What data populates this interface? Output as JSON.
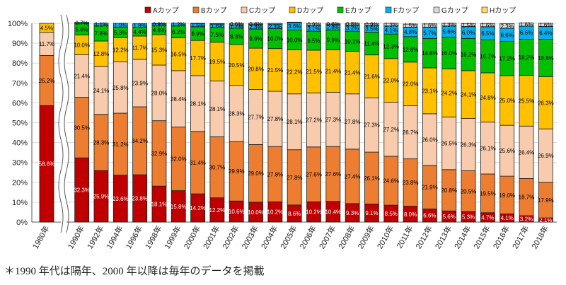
{
  "note": "＊1990 年代は隔年、2000 年以降は毎年のデータを掲載",
  "chart_data": {
    "type": "bar",
    "stacked": true,
    "percent_scale": true,
    "title": "",
    "xlabel": "",
    "ylabel": "",
    "ylim": [
      0,
      100
    ],
    "yticks": [
      "0%",
      "10%",
      "20%",
      "30%",
      "40%",
      "50%",
      "60%",
      "70%",
      "80%",
      "90%",
      "100%"
    ],
    "legend_position": "top",
    "axis_break_after_first": true,
    "categories": [
      "1980年",
      "1990年",
      "1992年",
      "1994年",
      "1996年",
      "1998年",
      "1999年",
      "2000年",
      "2001年",
      "2002年",
      "2003年",
      "2004年",
      "2005年",
      "2006年",
      "2007年",
      "2008年",
      "2009年",
      "2010年",
      "2011年",
      "2012年",
      "2013年",
      "2014年",
      "2015年",
      "2016年",
      "2017年",
      "2018年"
    ],
    "series": [
      {
        "name": "Aカップ",
        "color": "#c00000",
        "label_color": "#ffffff",
        "values": [
          58.6,
          32.3,
          25.9,
          23.6,
          23.8,
          18.1,
          15.8,
          14.2,
          12.2,
          10.6,
          10.0,
          10.2,
          8.6,
          10.2,
          10.4,
          9.3,
          9.1,
          8.5,
          8.0,
          6.6,
          5.6,
          5.3,
          4.7,
          4.1,
          3.2,
          2.1
        ]
      },
      {
        "name": "Bカップ",
        "color": "#ed7d31",
        "label_color": "#000000",
        "values": [
          25.2,
          30.5,
          28.3,
          31.2,
          34.2,
          32.9,
          32.0,
          31.4,
          30.7,
          29.9,
          29.0,
          27.8,
          27.8,
          27.6,
          27.6,
          27.4,
          26.1,
          24.6,
          23.8,
          21.9,
          20.8,
          20.5,
          19.5,
          19.0,
          18.7,
          17.9
        ]
      },
      {
        "name": "Cカップ",
        "color": "#f8cbad",
        "label_color": "#000000",
        "values": [
          11.7,
          21.4,
          24.1,
          25.8,
          23.9,
          28.0,
          28.4,
          28.1,
          28.1,
          28.3,
          27.7,
          27.8,
          28.1,
          27.2,
          27.3,
          27.8,
          27.3,
          27.2,
          26.7,
          26.0,
          26.5,
          26.3,
          26.1,
          25.6,
          26.4,
          26.9
        ]
      },
      {
        "name": "Dカップ",
        "color": "#ffc000",
        "label_color": "#000000",
        "values": [
          4.5,
          10.0,
          12.8,
          12.2,
          11.7,
          15.3,
          16.5,
          17.7,
          19.5,
          20.5,
          20.8,
          21.5,
          22.2,
          21.5,
          21.4,
          21.4,
          21.6,
          22.0,
          22.0,
          23.1,
          24.2,
          24.1,
          24.8,
          25.0,
          25.5,
          26.3
        ]
      },
      {
        "name": "Eカップ",
        "color": "#00c000",
        "label_color": "#000000",
        "values": [
          0,
          5.6,
          7.8,
          5.3,
          4.4,
          4.8,
          6.2,
          6.9,
          7.5,
          8.3,
          9.6,
          10.0,
          10.0,
          9.5,
          9.9,
          10.1,
          11.4,
          12.3,
          12.8,
          14.8,
          16.0,
          16.2,
          16.7,
          17.2,
          18.2,
          18.8
        ]
      },
      {
        "name": "Fカップ",
        "color": "#00b0f0",
        "label_color": "#000000",
        "values": [
          0,
          0.7,
          1.1,
          1.9,
          1.8,
          0.8,
          1.2,
          1.5,
          1.6,
          1.7,
          2.3,
          2.3,
          3.6,
          3.1,
          2.8,
          3.2,
          3.5,
          4.1,
          4.8,
          5.7,
          5.6,
          6.0,
          6.5,
          6.6,
          6.6,
          6.4
        ]
      },
      {
        "name": "Gカップ",
        "color": "#d9d9d9",
        "label_color": "#000000",
        "values": [
          0,
          0,
          0,
          0,
          0,
          0.1,
          0,
          0.2,
          0.3,
          0.6,
          0.6,
          0.4,
          0.3,
          0.9,
          0.6,
          0.8,
          0.9,
          1.3,
          1.5,
          1.6,
          1.3,
          1.5,
          1.6,
          2.3,
          1.6,
          1.6
        ]
      },
      {
        "name": "Hカップ",
        "color": "#ffd966",
        "label_color": "#000000",
        "values": [
          0,
          0,
          0,
          0,
          0,
          0,
          0,
          0,
          0,
          0,
          0,
          0,
          0,
          0,
          0,
          0,
          0,
          0,
          0,
          0,
          0,
          0,
          0,
          0,
          0,
          0
        ]
      }
    ]
  }
}
